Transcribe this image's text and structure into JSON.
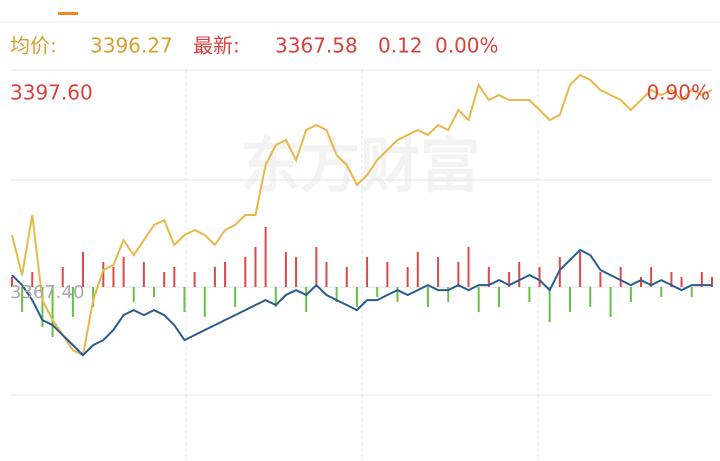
{
  "header": {
    "avg_label": "均价:",
    "avg_value": "3396.27",
    "last_label": "最新:",
    "last_value": "3367.58",
    "change": "0.12",
    "change_pct": "0.00%"
  },
  "chart_data": {
    "type": "line",
    "watermark": "东方财富",
    "top_right_label": "0.90%",
    "ylim": [
      3343.2,
      3397.6
    ],
    "yticks": [
      {
        "value": 3397.6,
        "label": "3397.60"
      },
      {
        "value": 3367.4,
        "label": "3367.40"
      }
    ],
    "grid": true,
    "series": [
      {
        "color": "#e8b84a",
        "values": [
          3374.64,
          3369.07,
          3377.42,
          3365.59,
          3362.81,
          3360.72,
          3358.63,
          3357.94,
          3365.59,
          3369.77,
          3370.46,
          3373.94,
          3371.85,
          3373.94,
          3376.03,
          3376.72,
          3373.25,
          3374.64,
          3375.33,
          3374.64,
          3373.25,
          3375.33,
          3376.03,
          3377.42,
          3377.42,
          3384.38,
          3387.16,
          3387.86,
          3385.07,
          3389.25,
          3389.95,
          3389.25,
          3385.77,
          3384.38,
          3381.6,
          3382.99,
          3385.07,
          3386.47,
          3387.86,
          3388.55,
          3389.25,
          3388.55,
          3389.95,
          3389.25,
          3392.03,
          3390.64,
          3395.51,
          3393.42,
          3394.12,
          3393.42,
          3393.42,
          3393.42,
          3392.03,
          3390.64,
          3391.34,
          3395.51,
          3396.9,
          3396.21,
          3394.82,
          3394.12,
          3393.42,
          3392.03,
          3393.42,
          3394.82,
          3394.12,
          3394.82,
          3393.42,
          3394.82,
          3394.12,
          3394.82
        ]
      },
      {
        "color": "#2a5d8f",
        "values": [
          3369.07,
          3367.68,
          3365.59,
          3362.81,
          3362.11,
          3360.72,
          3359.33,
          3357.94,
          3359.33,
          3360.02,
          3361.42,
          3363.5,
          3364.2,
          3363.5,
          3364.2,
          3363.5,
          3362.11,
          3360.02,
          3360.72,
          3361.42,
          3362.11,
          3362.81,
          3363.5,
          3364.2,
          3364.9,
          3365.59,
          3364.9,
          3366.29,
          3366.98,
          3366.29,
          3367.68,
          3366.29,
          3365.59,
          3364.9,
          3364.2,
          3365.59,
          3365.59,
          3366.29,
          3366.98,
          3366.29,
          3366.98,
          3367.68,
          3366.98,
          3366.98,
          3367.68,
          3366.98,
          3367.68,
          3367.68,
          3368.37,
          3367.68,
          3368.37,
          3369.07,
          3368.37,
          3366.98,
          3369.77,
          3371.16,
          3372.55,
          3371.85,
          3369.77,
          3369.07,
          3368.37,
          3367.68,
          3368.37,
          3367.68,
          3368.37,
          3367.68,
          3366.98,
          3367.68,
          3367.68,
          3367.68
        ]
      }
    ],
    "volume": {
      "up_color": "#e04848",
      "down_color": "#6abf4b",
      "y2lim": [
        -174,
        217
      ],
      "values": [
        10,
        -25,
        15,
        -40,
        -50,
        20,
        -30,
        35,
        -20,
        25,
        20,
        30,
        -15,
        25,
        -10,
        15,
        20,
        -25,
        15,
        -30,
        20,
        25,
        -20,
        30,
        40,
        60,
        -20,
        35,
        30,
        -25,
        40,
        25,
        -15,
        20,
        -20,
        30,
        -10,
        25,
        -15,
        20,
        35,
        -20,
        30,
        -15,
        25,
        40,
        -25,
        20,
        -20,
        15,
        25,
        -15,
        20,
        -35,
        30,
        -25,
        35,
        -20,
        15,
        -30,
        20,
        -15,
        10,
        20,
        -10,
        15,
        10,
        -10,
        15,
        10
      ]
    }
  }
}
